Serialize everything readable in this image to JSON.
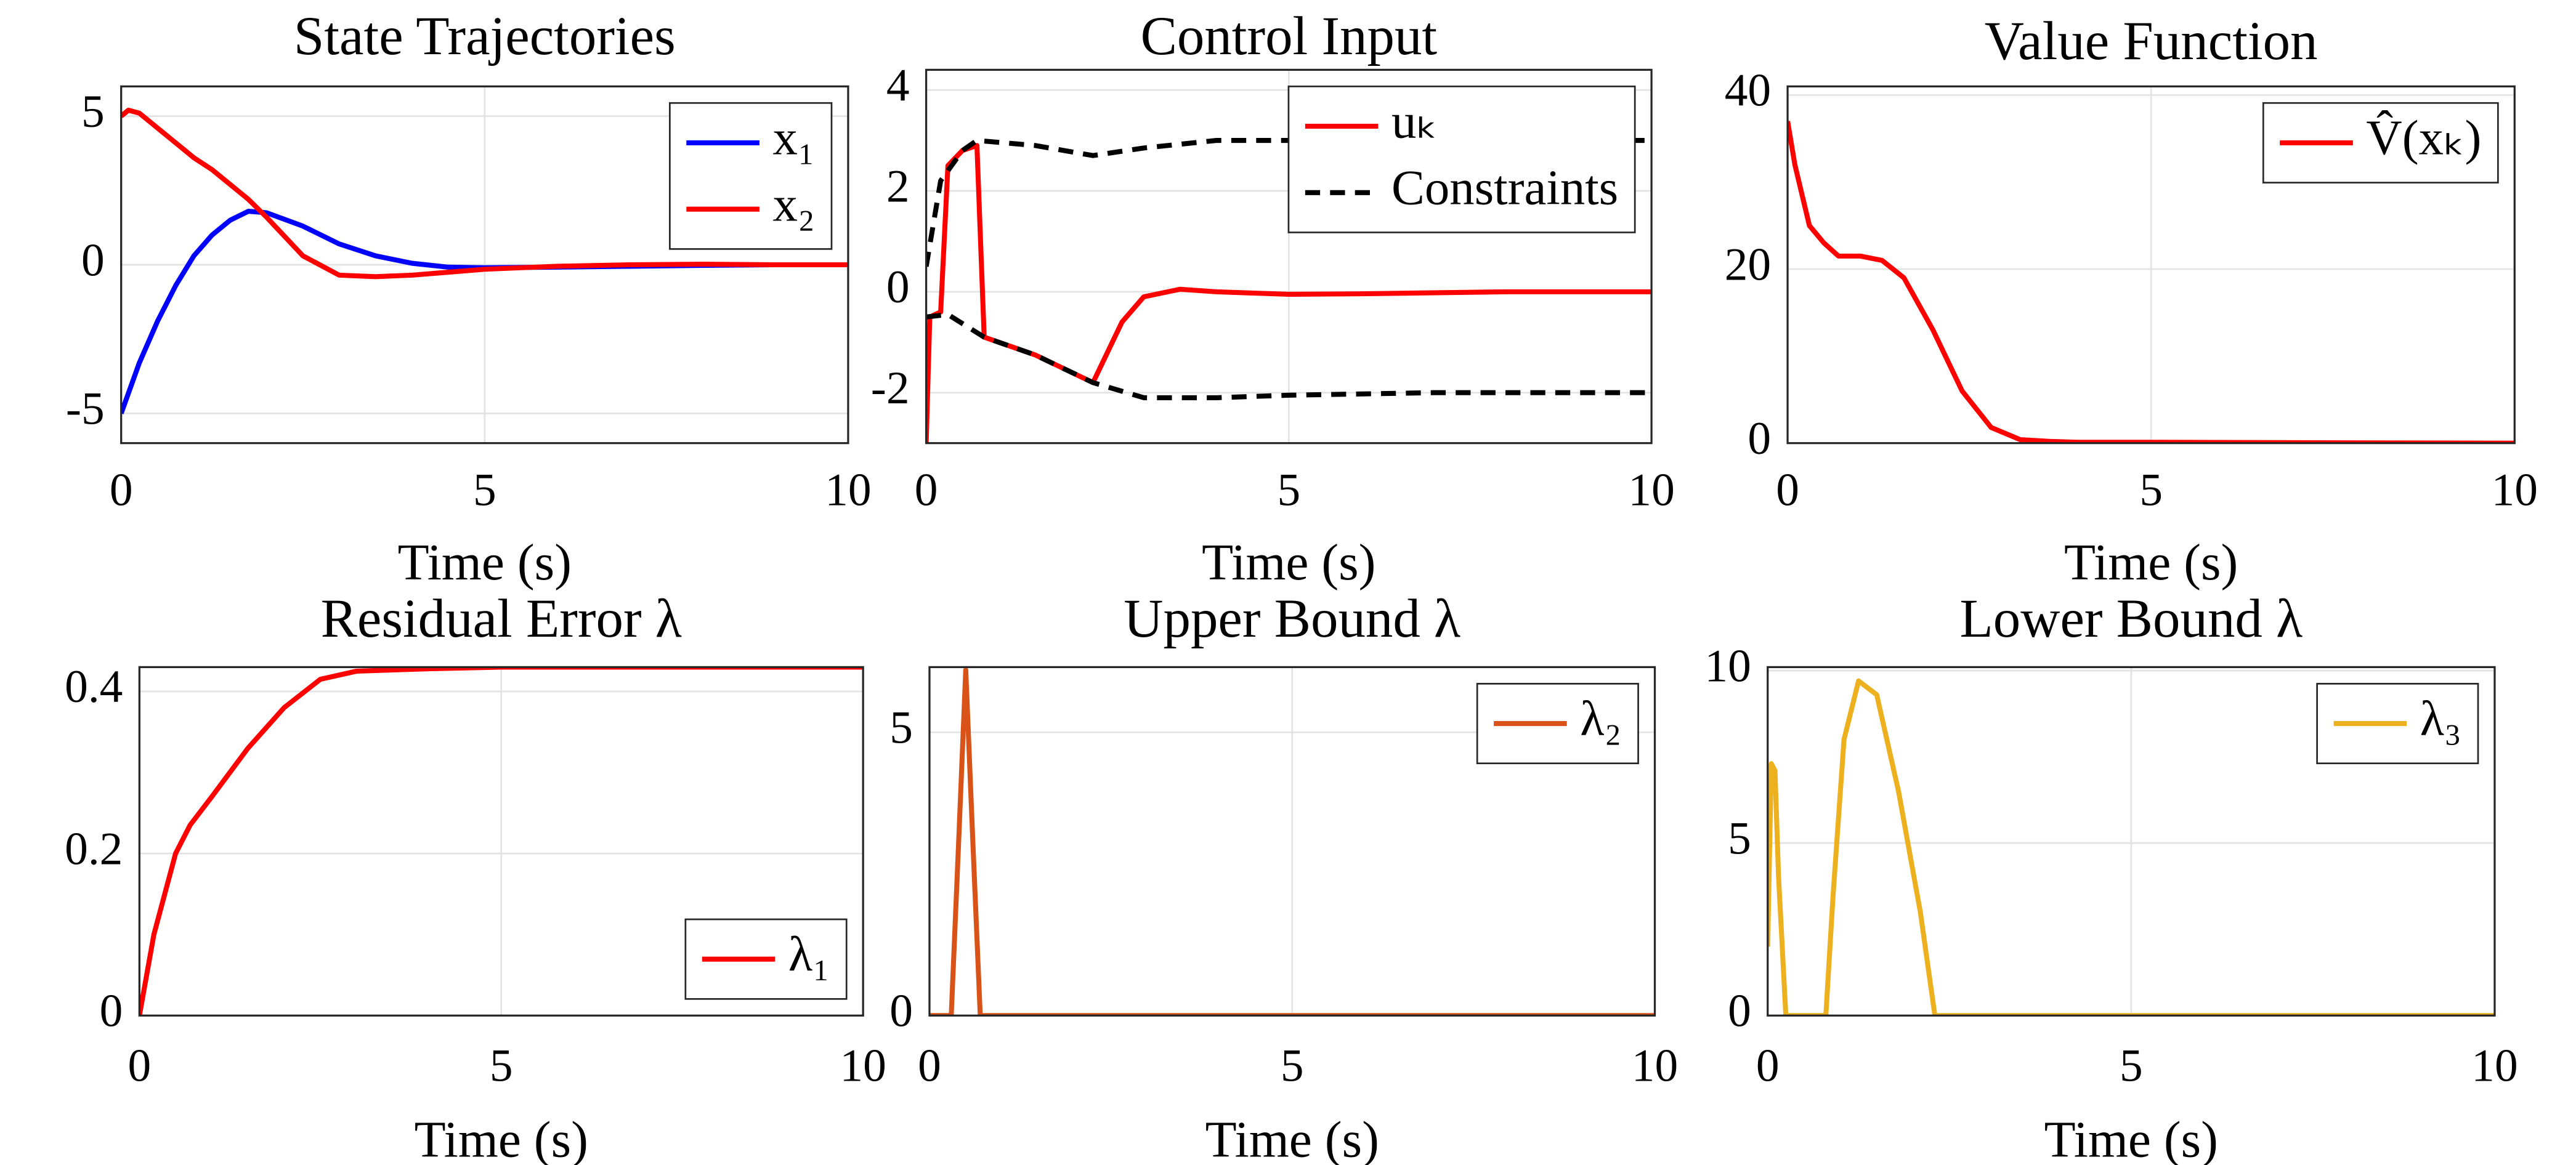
{
  "chart_data": [
    {
      "type": "line",
      "title": "State Trajectories",
      "xlabel": "Time (s)",
      "xlim": [
        0,
        10
      ],
      "ylim": [
        -6,
        6
      ],
      "xticks": [
        0,
        5,
        10
      ],
      "yticks": [
        -5,
        0,
        5
      ],
      "grid": true,
      "legend": "northeast",
      "series": [
        {
          "name": "x₁",
          "color": "#0000ff",
          "x": [
            0,
            0.25,
            0.5,
            0.75,
            1,
            1.25,
            1.5,
            1.75,
            2,
            2.5,
            3,
            3.5,
            4,
            4.5,
            5,
            6,
            7,
            8,
            9,
            10
          ],
          "values": [
            -5,
            -3.3,
            -1.9,
            -0.7,
            0.3,
            1,
            1.5,
            1.8,
            1.75,
            1.3,
            0.7,
            0.3,
            0.05,
            -0.08,
            -0.1,
            -0.08,
            -0.05,
            -0.02,
            0,
            0
          ]
        },
        {
          "name": "x₂",
          "color": "#ff0000",
          "x": [
            0,
            0.1,
            0.25,
            0.5,
            0.75,
            1,
            1.25,
            1.5,
            1.75,
            2,
            2.5,
            3,
            3.5,
            4,
            4.5,
            5,
            6,
            7,
            8,
            9,
            10
          ],
          "values": [
            5,
            5.2,
            5.1,
            4.6,
            4.1,
            3.6,
            3.2,
            2.7,
            2.2,
            1.6,
            0.3,
            -0.35,
            -0.4,
            -0.35,
            -0.25,
            -0.15,
            -0.05,
            0,
            0.02,
            0,
            0
          ]
        }
      ]
    },
    {
      "type": "line",
      "title": "Control Input",
      "xlabel": "Time (s)",
      "xlim": [
        0,
        10
      ],
      "ylim": [
        -3,
        4.4
      ],
      "xticks": [
        0,
        5,
        10
      ],
      "yticks": [
        -2,
        0,
        2,
        4
      ],
      "grid": true,
      "legend": "northeast",
      "series": [
        {
          "name": "uₖ",
          "color": "#ff0000",
          "line_style": "solid",
          "x": [
            0,
            0.05,
            0.2,
            0.3,
            0.5,
            0.7,
            0.8,
            1.5,
            2.3,
            2.7,
            3,
            3.5,
            4,
            5,
            6,
            8,
            10
          ],
          "values": [
            -3,
            -0.5,
            -0.4,
            2.5,
            2.8,
            2.9,
            -0.9,
            -1.25,
            -1.8,
            -0.6,
            -0.1,
            0.05,
            0,
            -0.05,
            -0.04,
            0,
            0
          ]
        },
        {
          "name": "Constraints",
          "color": "#000000",
          "line_style": "dashed",
          "x": [
            0,
            0.2,
            0.5,
            0.7,
            1.5,
            2.3,
            3,
            4,
            5,
            7,
            10
          ],
          "values": [
            0.5,
            2.2,
            2.8,
            3,
            2.9,
            2.7,
            2.85,
            3,
            3,
            3,
            3
          ]
        },
        {
          "color": "#000000",
          "line_style": "dashed",
          "x": [
            0,
            0.3,
            0.8,
            1.5,
            2.3,
            3,
            4,
            5,
            7,
            10
          ],
          "values": [
            -0.5,
            -0.45,
            -0.9,
            -1.25,
            -1.8,
            -2.1,
            -2.1,
            -2.05,
            -2,
            -2
          ]
        }
      ]
    },
    {
      "type": "line",
      "title": "Value Function",
      "xlabel": "Time (s)",
      "xlim": [
        0,
        10
      ],
      "ylim": [
        0,
        41
      ],
      "xticks": [
        0,
        5,
        10
      ],
      "yticks": [
        0,
        20,
        40
      ],
      "grid": true,
      "legend": "northeast",
      "series": [
        {
          "name": "V̂(xₖ)",
          "color": "#ff0000",
          "x": [
            0,
            0.1,
            0.3,
            0.5,
            0.7,
            1,
            1.3,
            1.6,
            2,
            2.4,
            2.8,
            3.2,
            3.6,
            4,
            5,
            7,
            10
          ],
          "values": [
            37,
            32,
            25,
            23,
            21.5,
            21.5,
            21,
            19,
            13,
            6,
            1.8,
            0.4,
            0.2,
            0.1,
            0.1,
            0.05,
            0
          ]
        }
      ]
    },
    {
      "type": "line",
      "title": "Residual Error λ",
      "xlabel": "Time (s)",
      "xlim": [
        0,
        10
      ],
      "ylim": [
        0,
        0.43
      ],
      "xticks": [
        0,
        5,
        10
      ],
      "yticks": [
        0,
        0.2,
        0.4
      ],
      "grid": true,
      "legend": "southeast",
      "series": [
        {
          "name": "λ₁",
          "color": "#ff0000",
          "x": [
            0,
            0.2,
            0.5,
            0.7,
            1,
            1.5,
            2,
            2.5,
            3,
            4,
            5,
            10
          ],
          "values": [
            0,
            0.1,
            0.2,
            0.235,
            0.27,
            0.33,
            0.38,
            0.415,
            0.425,
            0.428,
            0.43,
            0.43
          ]
        }
      ]
    },
    {
      "type": "line",
      "title": "Upper Bound λ",
      "xlabel": "Time (s)",
      "xlim": [
        0,
        10
      ],
      "ylim": [
        0,
        6.15
      ],
      "xticks": [
        0,
        5,
        10
      ],
      "yticks": [
        0,
        5
      ],
      "grid": true,
      "legend": "northeast",
      "series": [
        {
          "name": "λ₂",
          "color": "#d95319",
          "x": [
            0,
            0.3,
            0.4,
            0.5,
            0.6,
            0.7,
            10
          ],
          "values": [
            0,
            0,
            3,
            6.1,
            3,
            0,
            0
          ]
        }
      ]
    },
    {
      "type": "line",
      "title": "Lower Bound λ",
      "xlabel": "Time (s)",
      "xlim": [
        0,
        10
      ],
      "ylim": [
        0,
        10.1
      ],
      "xticks": [
        0,
        5,
        10
      ],
      "yticks": [
        0,
        5,
        10
      ],
      "grid": true,
      "legend": "northeast",
      "series": [
        {
          "name": "λ₃",
          "color": "#edb120",
          "x": [
            0,
            0.05,
            0.1,
            0.15,
            0.25,
            0.8,
            0.9,
            1.05,
            1.25,
            1.5,
            1.8,
            2.1,
            2.3,
            10
          ],
          "values": [
            2,
            7.3,
            7.1,
            4,
            0,
            0,
            3.5,
            8,
            9.7,
            9.3,
            6.5,
            3,
            0,
            0
          ]
        }
      ]
    }
  ]
}
